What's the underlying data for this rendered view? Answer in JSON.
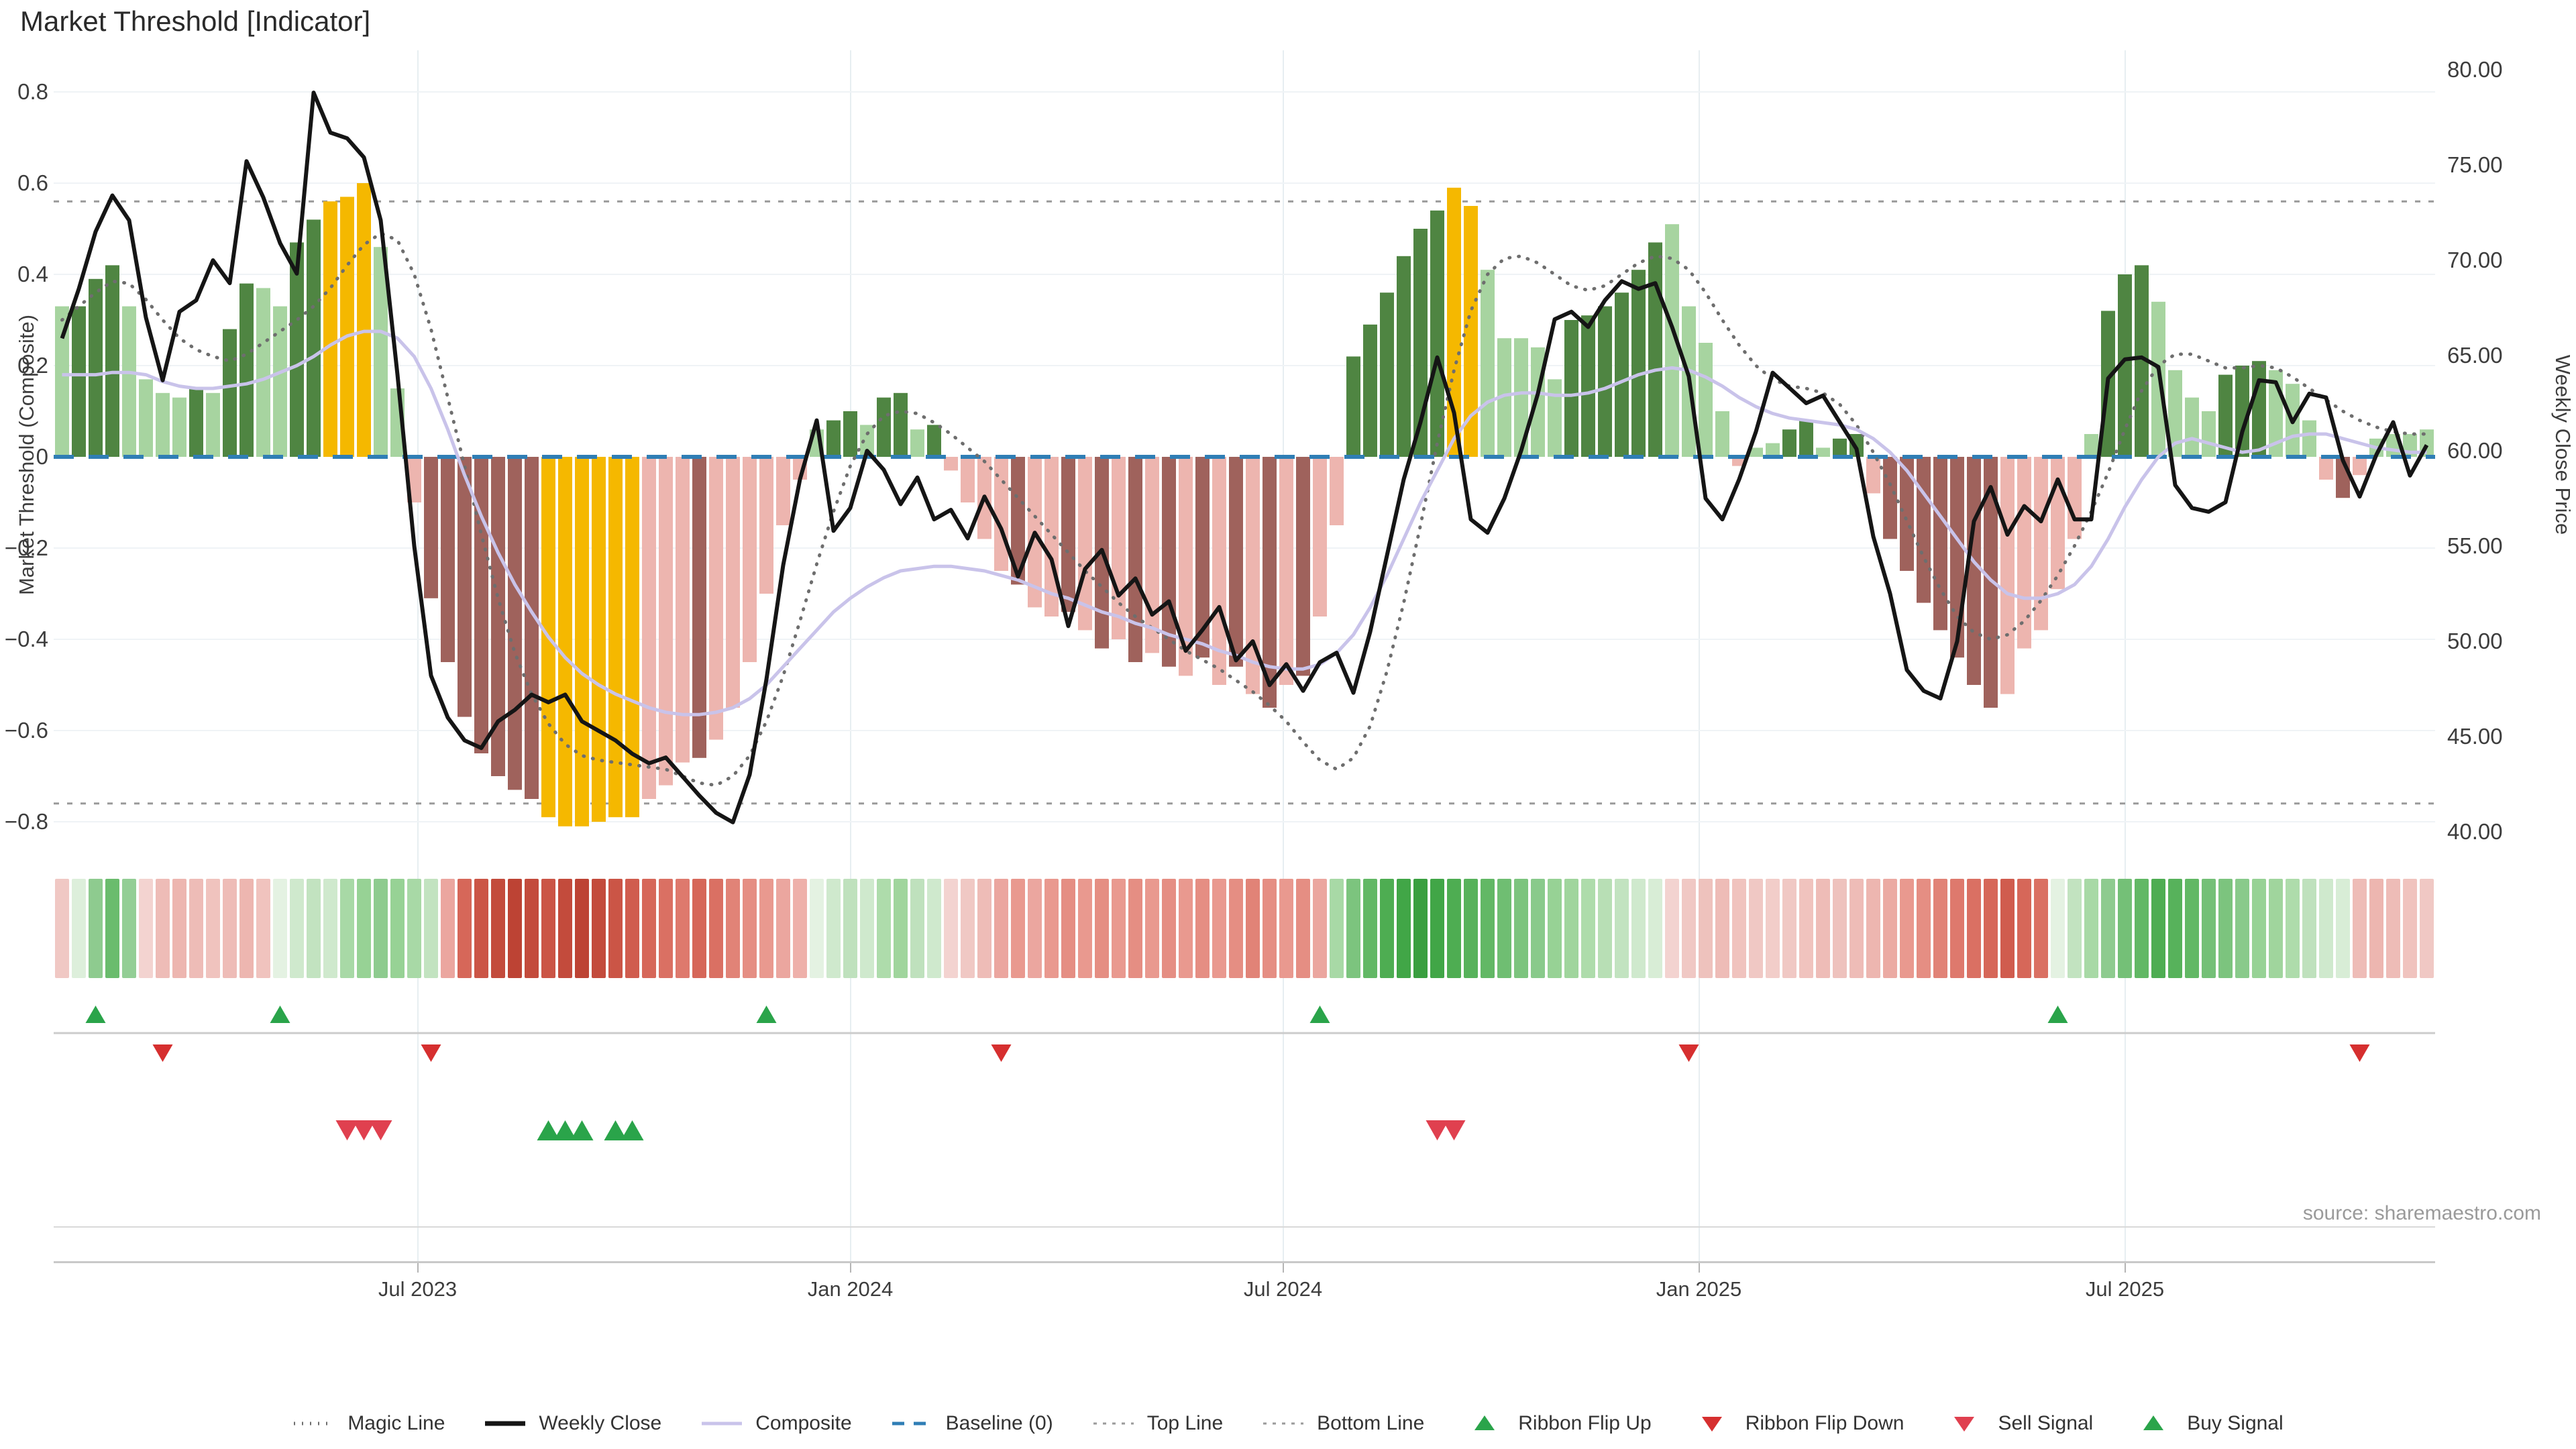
{
  "title": "Market Threshold [Indicator]",
  "source_note": "source: sharemaestro.com",
  "left_axis": {
    "title": "Market Threshold (Composite)",
    "ticks": [
      0.8,
      0.6,
      0.4,
      0.2,
      0,
      -0.2,
      -0.4,
      -0.6,
      -0.8
    ]
  },
  "right_axis": {
    "title": "Weekly Close Price",
    "ticks": [
      80.0,
      75.0,
      70.0,
      65.0,
      60.0,
      55.0,
      50.0,
      45.0,
      40.0
    ]
  },
  "x_axis": {
    "ticks": [
      {
        "index": 21.2,
        "label": "Jul 2023"
      },
      {
        "index": 47.0,
        "label": "Jan 2024"
      },
      {
        "index": 72.8,
        "label": "Jul 2024"
      },
      {
        "index": 97.6,
        "label": "Jan 2025"
      },
      {
        "index": 123.0,
        "label": "Jul 2025"
      }
    ]
  },
  "colors": {
    "bar_palette": {
      "g": "#4f8542",
      "l": "#a7d4a0",
      "y": "#f5b800",
      "p": "#edb5af",
      "r": "#9f625c"
    },
    "weekly_close": "#151515",
    "composite_line": "#c9c3ea",
    "magic_line": "#6e6e6e",
    "top_bottom_line": "#9a9a9a",
    "baseline": "#2f7eb5",
    "flip_up": "#2aa44a",
    "flip_down": "#d62f2f",
    "sell": "#e0404f",
    "buy": "#2aa44a"
  },
  "legend": [
    {
      "label": "Magic Line",
      "marker": "dotted-dark"
    },
    {
      "label": "Weekly Close",
      "marker": "solid-black"
    },
    {
      "label": "Composite",
      "marker": "solid-lavender"
    },
    {
      "label": "Baseline (0)",
      "marker": "dashed-blue"
    },
    {
      "label": "Top Line",
      "marker": "dotted-gray"
    },
    {
      "label": "Bottom Line",
      "marker": "dotted-gray"
    },
    {
      "label": "Ribbon Flip Up",
      "marker": "tri-up"
    },
    {
      "label": "Ribbon Flip Down",
      "marker": "tri-down"
    },
    {
      "label": "Sell Signal",
      "marker": "tri-down-sell"
    },
    {
      "label": "Buy Signal",
      "marker": "tri-up-buy"
    }
  ],
  "chart_data": {
    "type": "bar+line",
    "title": "Market Threshold [Indicator]",
    "ylabel_left": "Market Threshold (Composite)",
    "ylabel_right": "Weekly Close Price",
    "ylim_left": [
      -0.88,
      0.9
    ],
    "ylim_right": [
      39.0,
      80.3
    ],
    "top_line": 0.56,
    "bottom_line": -0.76,
    "baseline": 0,
    "bar_values": [
      0.33,
      0.33,
      0.39,
      0.42,
      0.33,
      0.17,
      0.14,
      0.13,
      0.15,
      0.14,
      0.28,
      0.38,
      0.37,
      0.33,
      0.47,
      0.52,
      0.56,
      0.57,
      0.6,
      0.46,
      0.15,
      -0.1,
      -0.31,
      -0.45,
      -0.57,
      -0.65,
      -0.7,
      -0.73,
      -0.75,
      -0.79,
      -0.81,
      -0.81,
      -0.8,
      -0.79,
      -0.79,
      -0.75,
      -0.72,
      -0.67,
      -0.66,
      -0.62,
      -0.55,
      -0.45,
      -0.3,
      -0.15,
      -0.05,
      0.06,
      0.08,
      0.1,
      0.07,
      0.13,
      0.14,
      0.06,
      0.07,
      -0.03,
      -0.1,
      -0.18,
      -0.25,
      -0.28,
      -0.33,
      -0.35,
      -0.34,
      -0.38,
      -0.42,
      -0.4,
      -0.45,
      -0.43,
      -0.46,
      -0.48,
      -0.44,
      -0.5,
      -0.46,
      -0.52,
      -0.55,
      -0.5,
      -0.48,
      -0.35,
      -0.15,
      0.22,
      0.29,
      0.36,
      0.44,
      0.5,
      0.54,
      0.59,
      0.55,
      0.41,
      0.26,
      0.26,
      0.24,
      0.17,
      0.3,
      0.31,
      0.33,
      0.36,
      0.41,
      0.47,
      0.51,
      0.33,
      0.25,
      0.1,
      -0.02,
      0.02,
      0.03,
      0.06,
      0.08,
      0.02,
      0.04,
      0.05,
      -0.08,
      -0.18,
      -0.25,
      -0.32,
      -0.38,
      -0.44,
      -0.5,
      -0.55,
      -0.52,
      -0.42,
      -0.38,
      -0.29,
      -0.18,
      0.05,
      0.32,
      0.4,
      0.42,
      0.34,
      0.19,
      0.13,
      0.1,
      0.18,
      0.2,
      0.21,
      0.19,
      0.16,
      0.08,
      -0.05,
      -0.09,
      -0.04,
      0.04,
      0.05,
      0.05,
      0.06
    ],
    "bar_colors": [
      "l",
      "g",
      "g",
      "g",
      "l",
      "l",
      "l",
      "l",
      "g",
      "l",
      "g",
      "g",
      "l",
      "l",
      "g",
      "g",
      "y",
      "y",
      "y",
      "l",
      "l",
      "p",
      "r",
      "r",
      "r",
      "r",
      "r",
      "r",
      "r",
      "y",
      "y",
      "y",
      "y",
      "y",
      "y",
      "p",
      "p",
      "p",
      "r",
      "p",
      "p",
      "p",
      "p",
      "p",
      "p",
      "l",
      "g",
      "g",
      "l",
      "g",
      "g",
      "l",
      "g",
      "p",
      "p",
      "p",
      "p",
      "r",
      "p",
      "p",
      "r",
      "p",
      "r",
      "p",
      "r",
      "p",
      "r",
      "p",
      "r",
      "p",
      "r",
      "p",
      "r",
      "p",
      "r",
      "p",
      "p",
      "g",
      "g",
      "g",
      "g",
      "g",
      "g",
      "y",
      "y",
      "l",
      "l",
      "l",
      "l",
      "l",
      "g",
      "g",
      "g",
      "g",
      "g",
      "g",
      "l",
      "l",
      "l",
      "l",
      "p",
      "l",
      "l",
      "g",
      "g",
      "l",
      "g",
      "g",
      "p",
      "r",
      "r",
      "r",
      "r",
      "r",
      "r",
      "r",
      "p",
      "p",
      "p",
      "p",
      "p",
      "l",
      "g",
      "g",
      "g",
      "l",
      "l",
      "l",
      "l",
      "g",
      "g",
      "g",
      "l",
      "l",
      "l",
      "p",
      "r",
      "p",
      "l",
      "l",
      "l",
      "l"
    ],
    "weekly_close": [
      65.9,
      68.5,
      71.5,
      73.4,
      72.1,
      67.0,
      63.7,
      67.3,
      67.9,
      70.0,
      68.8,
      75.2,
      73.3,
      70.9,
      69.3,
      78.8,
      76.7,
      76.4,
      75.4,
      72.1,
      64.0,
      55.0,
      48.2,
      46.0,
      44.8,
      44.4,
      45.8,
      46.4,
      47.2,
      46.8,
      47.2,
      45.8,
      45.3,
      44.8,
      44.1,
      43.6,
      43.9,
      42.9,
      41.9,
      41.0,
      40.5,
      43.0,
      48.0,
      54.0,
      58.5,
      61.6,
      55.8,
      57.0,
      60.0,
      59.0,
      57.2,
      58.6,
      56.4,
      56.9,
      55.4,
      57.6,
      55.9,
      53.4,
      55.7,
      54.3,
      50.8,
      53.8,
      54.8,
      52.4,
      53.3,
      51.4,
      52.1,
      49.5,
      50.6,
      51.8,
      49.0,
      50.0,
      47.7,
      48.8,
      47.4,
      48.9,
      49.4,
      47.3,
      50.5,
      54.5,
      58.5,
      61.5,
      64.9,
      62.0,
      56.4,
      55.7,
      57.5,
      60.0,
      63.0,
      66.9,
      67.3,
      66.5,
      67.9,
      68.9,
      68.5,
      68.8,
      66.5,
      63.9,
      57.5,
      56.4,
      58.5,
      61.0,
      64.1,
      63.3,
      62.5,
      62.9,
      61.5,
      60.1,
      55.5,
      52.5,
      48.5,
      47.4,
      47.0,
      50.0,
      56.3,
      58.1,
      55.6,
      57.1,
      56.3,
      58.5,
      56.4,
      56.4,
      63.8,
      64.8,
      64.9,
      64.4,
      58.2,
      57.0,
      56.8,
      57.3,
      61.0,
      63.7,
      63.6,
      61.5,
      63.0,
      62.8,
      59.5,
      57.6,
      59.8,
      61.5,
      58.7,
      60.3
    ],
    "composite": [
      0.18,
      0.18,
      0.18,
      0.185,
      0.185,
      0.18,
      0.165,
      0.155,
      0.15,
      0.15,
      0.155,
      0.16,
      0.17,
      0.185,
      0.2,
      0.22,
      0.245,
      0.265,
      0.275,
      0.275,
      0.26,
      0.22,
      0.15,
      0.06,
      -0.04,
      -0.13,
      -0.21,
      -0.28,
      -0.34,
      -0.395,
      -0.44,
      -0.475,
      -0.5,
      -0.52,
      -0.535,
      -0.55,
      -0.56,
      -0.565,
      -0.565,
      -0.56,
      -0.55,
      -0.53,
      -0.5,
      -0.46,
      -0.42,
      -0.38,
      -0.34,
      -0.31,
      -0.285,
      -0.265,
      -0.25,
      -0.245,
      -0.24,
      -0.24,
      -0.245,
      -0.25,
      -0.26,
      -0.27,
      -0.285,
      -0.3,
      -0.31,
      -0.325,
      -0.34,
      -0.35,
      -0.365,
      -0.375,
      -0.39,
      -0.4,
      -0.41,
      -0.425,
      -0.435,
      -0.45,
      -0.46,
      -0.465,
      -0.465,
      -0.455,
      -0.43,
      -0.39,
      -0.33,
      -0.26,
      -0.18,
      -0.1,
      -0.03,
      0.04,
      0.09,
      0.12,
      0.135,
      0.14,
      0.14,
      0.135,
      0.135,
      0.14,
      0.15,
      0.165,
      0.18,
      0.19,
      0.195,
      0.19,
      0.175,
      0.155,
      0.13,
      0.11,
      0.095,
      0.085,
      0.08,
      0.075,
      0.07,
      0.06,
      0.04,
      0.01,
      -0.03,
      -0.08,
      -0.13,
      -0.18,
      -0.23,
      -0.27,
      -0.3,
      -0.31,
      -0.31,
      -0.3,
      -0.28,
      -0.24,
      -0.18,
      -0.11,
      -0.05,
      0.0,
      0.03,
      0.04,
      0.03,
      0.02,
      0.01,
      0.015,
      0.03,
      0.045,
      0.05,
      0.05,
      0.04,
      0.03,
      0.02,
      0.015,
      0.01,
      0.01
    ],
    "magic": [
      0.3,
      0.33,
      0.36,
      0.385,
      0.38,
      0.345,
      0.3,
      0.26,
      0.235,
      0.22,
      0.21,
      0.225,
      0.25,
      0.275,
      0.3,
      0.33,
      0.37,
      0.42,
      0.465,
      0.49,
      0.475,
      0.4,
      0.28,
      0.13,
      -0.02,
      -0.17,
      -0.31,
      -0.43,
      -0.52,
      -0.585,
      -0.63,
      -0.655,
      -0.665,
      -0.67,
      -0.675,
      -0.68,
      -0.685,
      -0.7,
      -0.715,
      -0.72,
      -0.7,
      -0.655,
      -0.58,
      -0.48,
      -0.36,
      -0.235,
      -0.12,
      -0.02,
      0.05,
      0.09,
      0.1,
      0.095,
      0.075,
      0.05,
      0.02,
      -0.01,
      -0.05,
      -0.09,
      -0.13,
      -0.17,
      -0.21,
      -0.25,
      -0.285,
      -0.32,
      -0.35,
      -0.375,
      -0.4,
      -0.425,
      -0.445,
      -0.465,
      -0.49,
      -0.515,
      -0.545,
      -0.58,
      -0.625,
      -0.665,
      -0.685,
      -0.66,
      -0.59,
      -0.47,
      -0.32,
      -0.15,
      0.03,
      0.19,
      0.32,
      0.4,
      0.435,
      0.44,
      0.425,
      0.4,
      0.375,
      0.365,
      0.375,
      0.4,
      0.425,
      0.44,
      0.435,
      0.41,
      0.36,
      0.3,
      0.245,
      0.2,
      0.17,
      0.155,
      0.15,
      0.14,
      0.115,
      0.07,
      0.01,
      -0.06,
      -0.14,
      -0.22,
      -0.29,
      -0.35,
      -0.385,
      -0.4,
      -0.39,
      -0.36,
      -0.315,
      -0.26,
      -0.195,
      -0.12,
      -0.035,
      0.06,
      0.145,
      0.2,
      0.225,
      0.225,
      0.21,
      0.195,
      0.195,
      0.2,
      0.195,
      0.175,
      0.15,
      0.125,
      0.1,
      0.08,
      0.065,
      0.055,
      0.05,
      0.05
    ],
    "ribbon": [
      "#f0c8c4",
      "#ddefdb",
      "#8ecb8f",
      "#6abc6d",
      "#93ce95",
      "#f3d3d0",
      "#eebcb7",
      "#edb6b0",
      "#eebcb7",
      "#f0c3be",
      "#eebcb7",
      "#edb6b0",
      "#f0c3be",
      "#e4f2e2",
      "#cfe9cd",
      "#c2e3c0",
      "#cfe9cd",
      "#a8d9a6",
      "#97d295",
      "#8ecb8f",
      "#97d295",
      "#a8d9a6",
      "#c2e3c0",
      "#eba69f",
      "#d66759",
      "#cb5546",
      "#c34b3c",
      "#bd4334",
      "#c34b3c",
      "#cb5546",
      "#c34b3c",
      "#bd4334",
      "#c34b3c",
      "#cb5546",
      "#d05c4e",
      "#d66759",
      "#da7063",
      "#de796d",
      "#d66759",
      "#da7063",
      "#e18377",
      "#e58e83",
      "#e9998f",
      "#eba69f",
      "#eeb0aa",
      "#e4f2e2",
      "#cfe9cd",
      "#bfe1bd",
      "#cfe9cd",
      "#aedcab",
      "#a0d59d",
      "#bfe1bd",
      "#cfe9cd",
      "#f3d3d0",
      "#f0c8c4",
      "#eebcb7",
      "#eba69f",
      "#e9998f",
      "#eba69f",
      "#e9998f",
      "#e58e83",
      "#e9998f",
      "#e58e83",
      "#e9998f",
      "#e58e83",
      "#e9998f",
      "#e58e83",
      "#e9998f",
      "#e58e83",
      "#e9998f",
      "#e58e83",
      "#e18377",
      "#e58e83",
      "#e9998f",
      "#e58e83",
      "#eba69f",
      "#a8d9a6",
      "#7cc47e",
      "#62b865",
      "#4ead52",
      "#41a647",
      "#3a9f40",
      "#41a647",
      "#4ead52",
      "#57b25b",
      "#62b865",
      "#6fbe72",
      "#7cc47e",
      "#89ca8b",
      "#97d295",
      "#a0d59d",
      "#aedcab",
      "#b8dfb5",
      "#c2e3c0",
      "#cfe9cd",
      "#d8edd6",
      "#f3d3d0",
      "#f0c8c4",
      "#eec2bd",
      "#eebcb7",
      "#f0c3be",
      "#f0c8c4",
      "#f2cdc9",
      "#f0c8c4",
      "#f0c3be",
      "#eebcb7",
      "#eec2bd",
      "#eebcb7",
      "#edb6b0",
      "#ebaaa3",
      "#e9998f",
      "#e58e83",
      "#e18377",
      "#de796d",
      "#da7063",
      "#d66759",
      "#d05c4e",
      "#d66759",
      "#da7063",
      "#e4f2e2",
      "#c2e3c0",
      "#a8d9a6",
      "#8ecb8f",
      "#74c077",
      "#62b865",
      "#4ead52",
      "#57b25b",
      "#62b865",
      "#74c077",
      "#7cc47e",
      "#89ca8b",
      "#97d295",
      "#a0d59d",
      "#aedcab",
      "#bfe1bd",
      "#cfe9cd",
      "#d8edd6",
      "#eebcb7",
      "#edb6b0",
      "#eebcb7",
      "#f0c3be",
      "#f0c8c4"
    ],
    "signals": {
      "ribbon_flip_up": [
        2,
        13,
        42,
        75,
        119
      ],
      "ribbon_flip_down": [
        6,
        22,
        56,
        97,
        137
      ],
      "sell": [
        17,
        18,
        19,
        82,
        83
      ],
      "buy": [
        29,
        30,
        31,
        33,
        34
      ]
    }
  }
}
